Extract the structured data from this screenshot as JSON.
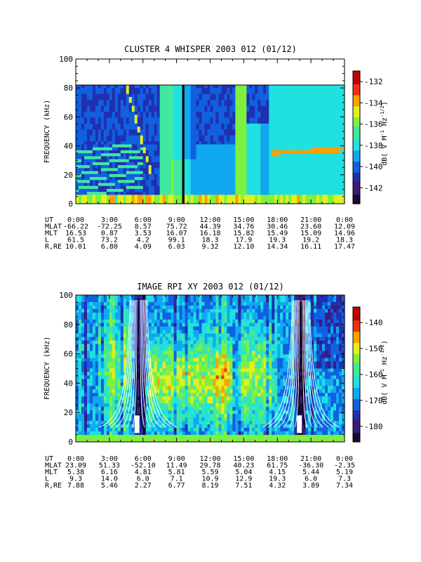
{
  "colors": {
    "scale": [
      "#1a0a30",
      "#3b1b7a",
      "#2030b0",
      "#1060e0",
      "#10a8f0",
      "#20e0e0",
      "#40e8a0",
      "#80f040",
      "#e0f020",
      "#ffa000",
      "#f03010",
      "#c00000"
    ]
  },
  "panels": [
    {
      "title": "CLUSTER 4 WHISPER 2003 012 (01/12)",
      "ylabel": "FREQUENCY (kHz)",
      "colorbar_label": "dB( V M^-1 Hz^-1/2 )",
      "colorbar_label_parts": {
        "prefix": "dB( V M",
        "exp1": "-1",
        "mid": " Hz",
        "exp2": "-1/2",
        "suffix": ")"
      },
      "colorbar_ticks": [
        "-132",
        "-134",
        "-136",
        "-138",
        "-140",
        "-142"
      ],
      "y_ticks": [
        "0",
        "20",
        "40",
        "60",
        "80",
        "100"
      ],
      "ephemeris_labels": [
        "UT",
        "MLAT",
        "MLT",
        "L",
        "R,RE"
      ],
      "ephemeris": [
        [
          "0:00",
          "3:00",
          "6:00",
          "9:00",
          "12:00",
          "15:00",
          "18:00",
          "21:00",
          "0:00"
        ],
        [
          "-66.22",
          "-72.25",
          "8.57",
          "75.72",
          "44.39",
          "34.76",
          "30.46",
          "23.60",
          "12.09"
        ],
        [
          "16.53",
          "0.87",
          "3.53",
          "16.07",
          "16.18",
          "15.82",
          "15.49",
          "15.09",
          "14.96"
        ],
        [
          "61.5",
          "73.2",
          "4.2",
          "99.1",
          "18.3",
          "17.9",
          "19.3",
          "19.2",
          "18.3"
        ],
        [
          "10.01",
          "6.80",
          "4.09",
          "6.03",
          "9.32",
          "12.10",
          "14.34",
          "16.11",
          "17.47"
        ]
      ]
    },
    {
      "title": "IMAGE RPI XY 2003 012 (01/12)",
      "ylabel": "FREQUENCY (kHz)",
      "colorbar_label": "dB( V M^-1 Hz^-1/2 )",
      "colorbar_label_parts": {
        "prefix": "dB( V M",
        "exp1": "-1",
        "mid": " Hz",
        "exp2": "-1/2",
        "suffix": ")"
      },
      "colorbar_ticks": [
        "-140",
        "-150",
        "-160",
        "-170",
        "-180"
      ],
      "y_ticks": [
        "0",
        "20",
        "40",
        "60",
        "80",
        "100"
      ],
      "ephemeris_labels": [
        "UT",
        "MLAT",
        "MLT",
        "L",
        "R,RE"
      ],
      "ephemeris": [
        [
          "0:00",
          "3:00",
          "6:00",
          "9:00",
          "12:00",
          "15:00",
          "18:00",
          "21:00",
          "0:00"
        ],
        [
          "23.09",
          "51.33",
          "-52.10",
          "11.49",
          "29.78",
          "40.23",
          "61.75",
          "-36.30",
          "-2.35"
        ],
        [
          "5.38",
          "6.16",
          "4.81",
          "5.81",
          "5.59",
          "5.04",
          "4.15",
          "5.44",
          "5.19"
        ],
        [
          "9.3",
          "14.0",
          "6.0",
          "7.1",
          "10.9",
          "12.9",
          "19.3",
          "6.0",
          "7.3"
        ],
        [
          "7.88",
          "5.46",
          "2.27",
          "6.77",
          "8.19",
          "7.51",
          "4.32",
          "3.89",
          "7.34"
        ]
      ]
    }
  ],
  "chart_data": [
    {
      "type": "heatmap",
      "title": "CLUSTER 4 WHISPER 2003 012 (01/12)",
      "xlabel": "UT",
      "ylabel": "FREQUENCY (kHz)",
      "x_ticks": [
        "0:00",
        "3:00",
        "6:00",
        "9:00",
        "12:00",
        "15:00",
        "18:00",
        "21:00",
        "0:00"
      ],
      "xlim_hours": [
        0,
        24
      ],
      "ylim": [
        0,
        100
      ],
      "data_ylim": [
        0,
        80
      ],
      "colorbar_range": [
        -143.5,
        -131
      ],
      "colorbar_ticks": [
        -132,
        -134,
        -136,
        -138,
        -140,
        -142
      ],
      "data_gap_hours": [
        9.5,
        9.7
      ]
    },
    {
      "type": "heatmap",
      "title": "IMAGE RPI XY 2003 012 (01/12)",
      "xlabel": "UT",
      "ylabel": "FREQUENCY (kHz)",
      "x_ticks": [
        "0:00",
        "3:00",
        "6:00",
        "9:00",
        "12:00",
        "15:00",
        "18:00",
        "21:00",
        "0:00"
      ],
      "xlim_hours": [
        0,
        24
      ],
      "ylim": [
        0,
        100
      ],
      "colorbar_range": [
        -186,
        -134
      ],
      "colorbar_ticks": [
        -140,
        -150,
        -160,
        -170,
        -180
      ],
      "overlay": "white and black plasmaspheric resonance frequency curves"
    }
  ]
}
